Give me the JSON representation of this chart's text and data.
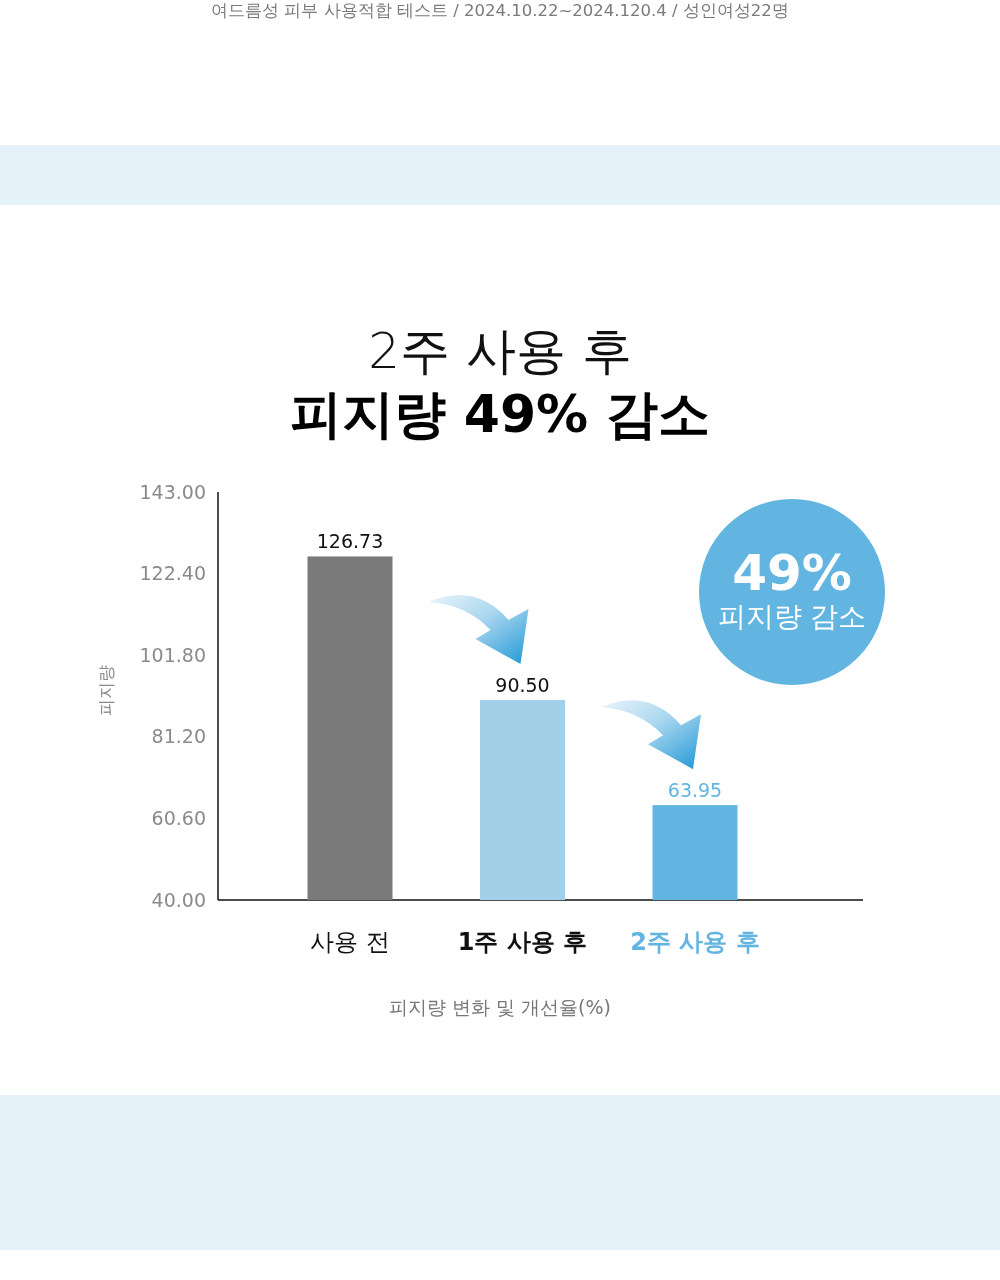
{
  "chart_data": {
    "type": "bar",
    "title": "2주 사용 후",
    "subtitle": "피지량 49% 감소",
    "xlabel": "피지량 변화 및 개선율(%)",
    "ylabel": "피지량",
    "annotations": [
      "여드름성 피부 사용적합 테스트 / 2024.10.22~2024.120.4 / 성인여성22명",
      "49%",
      "피지량 감소"
    ],
    "categories": [
      "사용 전",
      "1주 사용 후",
      "2주 사용 후"
    ],
    "values": [
      126.73,
      90.5,
      63.95
    ],
    "colors": [
      "#7a7a7a",
      "#a2d0e8",
      "#62b5e0"
    ],
    "value_labels": [
      "126.73",
      "90.50",
      "63.95"
    ],
    "ylim": [
      40,
      143
    ],
    "yticks": [
      {
        "value": 40,
        "label": "40.00"
      },
      {
        "value": 60.6,
        "label": "60.60"
      },
      {
        "value": 81.2,
        "label": "81.20"
      },
      {
        "value": 101.8,
        "label": "101.80"
      },
      {
        "value": 122.4,
        "label": "122.40"
      },
      {
        "value": 143,
        "label": "143.00"
      }
    ]
  }
}
